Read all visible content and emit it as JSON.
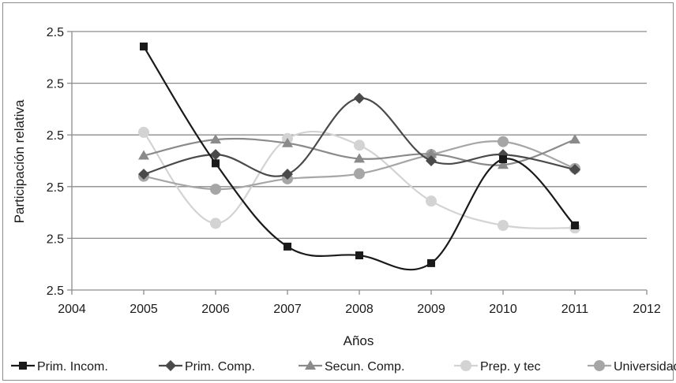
{
  "chart_data": {
    "type": "line",
    "title": "",
    "xlabel": "Años",
    "ylabel": "Participación relativa",
    "x_ticks": [
      "2004",
      "2005",
      "2006",
      "2007",
      "2008",
      "2009",
      "2010",
      "2011",
      "2012"
    ],
    "y_ticks": [
      "2.5",
      "2.5",
      "2.5",
      "2.5",
      "2.5",
      "2.5"
    ],
    "xlim": [
      2004,
      2012
    ],
    "ylim": [
      0,
      5
    ],
    "grid": "horizontal",
    "legend_position": "bottom",
    "x": [
      2005,
      2006,
      2007,
      2008,
      2009,
      2010,
      2011
    ],
    "series": [
      {
        "name": "Prim. Incom.",
        "color": "#1a1a1a",
        "marker": "square",
        "values": [
          4.71,
          2.45,
          0.84,
          0.67,
          0.52,
          2.53,
          1.25
        ]
      },
      {
        "name": "Prim. Comp.",
        "color": "#4a4a4a",
        "marker": "diamond",
        "values": [
          2.24,
          2.62,
          2.24,
          3.71,
          2.5,
          2.62,
          2.33
        ]
      },
      {
        "name": "Secun. Comp.",
        "color": "#8a8a8a",
        "marker": "triangle",
        "values": [
          2.6,
          2.91,
          2.84,
          2.54,
          2.63,
          2.42,
          2.91
        ]
      },
      {
        "name": "Prep. y tec",
        "color": "#d3d3d3",
        "marker": "circle",
        "values": [
          3.05,
          1.29,
          2.93,
          2.8,
          1.72,
          1.25,
          1.2
        ]
      },
      {
        "name": "Universidad",
        "color": "#a6a6a6",
        "marker": "circle",
        "values": [
          2.2,
          1.95,
          2.15,
          2.25,
          2.62,
          2.87,
          2.35
        ]
      }
    ]
  }
}
